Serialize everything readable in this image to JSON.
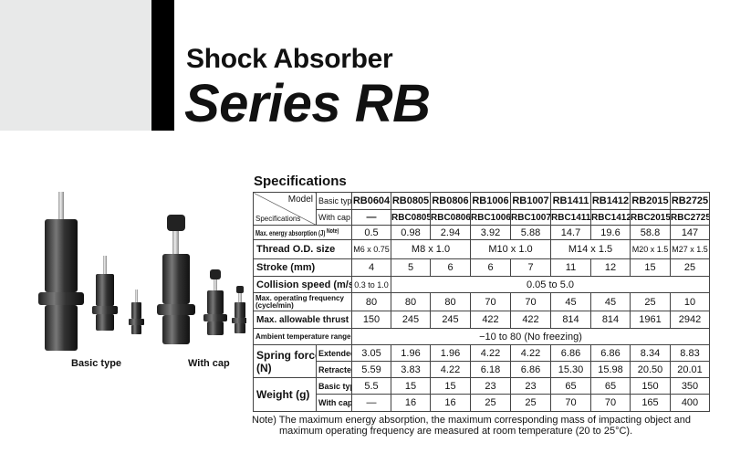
{
  "header": {
    "subtitle": "Shock Absorber",
    "title": "Series RB"
  },
  "products": {
    "basic_label": "Basic type",
    "cap_label": "With cap"
  },
  "specs": {
    "title": "Specifications",
    "corner_model": "Model",
    "corner_specs": "Specifications",
    "basic_type": "Basic type",
    "with_cap": "With cap",
    "models_basic": [
      "RB0604",
      "RB0805",
      "RB0806",
      "RB1006",
      "RB1007",
      "RB1411",
      "RB1412",
      "RB2015",
      "RB2725"
    ],
    "models_cap": [
      "—",
      "RBC0805",
      "RBC0806",
      "RBC1006",
      "RBC1007",
      "RBC1411",
      "RBC1412",
      "RBC2015",
      "RBC2725"
    ],
    "energy": {
      "label": "Max. energy absorption (J)",
      "note_mark": "Note)",
      "values": [
        "0.5",
        "0.98",
        "2.94",
        "3.92",
        "5.88",
        "14.7",
        "19.6",
        "58.8",
        "147"
      ]
    },
    "thread": {
      "label": "Thread O.D. size",
      "values": [
        "M6 x 0.75",
        "M8 x 1.0",
        "M10 x 1.0",
        "M14 x 1.5",
        "M20 x 1.5",
        "M27 x 1.5"
      ]
    },
    "stroke": {
      "label": "Stroke (mm)",
      "values": [
        "4",
        "5",
        "6",
        "6",
        "7",
        "11",
        "12",
        "15",
        "25"
      ]
    },
    "collision": {
      "label": "Collision speed (m/s)",
      "values": [
        "0.3 to 1.0",
        "0.05 to 5.0"
      ]
    },
    "frequency": {
      "label": "Max. operating frequency",
      "label2": "(cycle/min)",
      "values": [
        "80",
        "80",
        "80",
        "70",
        "70",
        "45",
        "45",
        "25",
        "10"
      ]
    },
    "thrust": {
      "label": "Max. allowable thrust (N)",
      "values": [
        "150",
        "245",
        "245",
        "422",
        "422",
        "814",
        "814",
        "1961",
        "2942"
      ]
    },
    "ambient": {
      "label": "Ambient temperature range (°C)",
      "value": "−10 to 80  (No freezing)"
    },
    "spring": {
      "label": "Spring force",
      "label2": "(N)",
      "extended": "Extended",
      "retracted": "Retracted",
      "ext_values": [
        "3.05",
        "1.96",
        "1.96",
        "4.22",
        "4.22",
        "6.86",
        "6.86",
        "8.34",
        "8.83"
      ],
      "ret_values": [
        "5.59",
        "3.83",
        "4.22",
        "6.18",
        "6.86",
        "15.30",
        "15.98",
        "20.50",
        "20.01"
      ]
    },
    "weight": {
      "label": "Weight (g)",
      "basic": "Basic type",
      "cap": "With cap",
      "basic_values": [
        "5.5",
        "15",
        "15",
        "23",
        "23",
        "65",
        "65",
        "150",
        "350"
      ],
      "cap_values": [
        "—",
        "16",
        "16",
        "25",
        "25",
        "70",
        "70",
        "165",
        "400"
      ]
    }
  },
  "note": {
    "line1": "Note) The maximum energy absorption, the maximum corresponding mass of impacting object and",
    "line2": "maximum operating frequency are measured at room temperature (20 to 25°C)."
  }
}
